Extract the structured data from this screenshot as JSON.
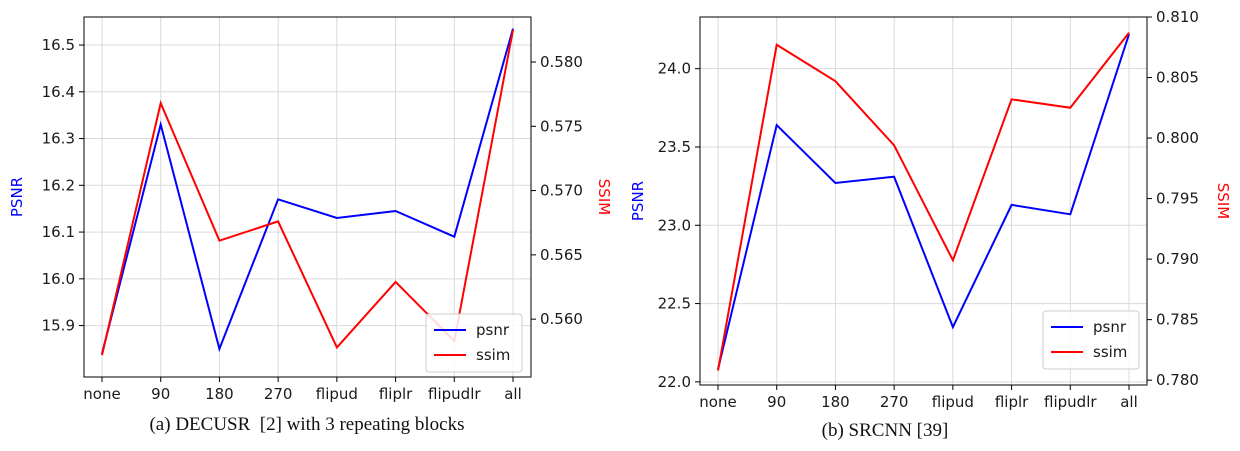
{
  "captions": {
    "left": "(a) DECUSR  [2] with 3 repeating blocks",
    "right": "(b) SRCNN [39]"
  },
  "colors": {
    "psnr": "#0000ff",
    "ssim": "#ff0000",
    "grid": "#d9d9d9",
    "axis": "#000000"
  },
  "chart_data": [
    {
      "type": "line",
      "categories": [
        "none",
        "90",
        "180",
        "270",
        "flipud",
        "fliplr",
        "flipudlr",
        "all"
      ],
      "ylabel": "PSNR",
      "y2label": "SSIM",
      "ylim": [
        15.79,
        16.56
      ],
      "y2lim": [
        0.5555,
        0.5835
      ],
      "yticks": [
        15.9,
        16.0,
        16.1,
        16.2,
        16.3,
        16.4,
        16.5
      ],
      "yticklabels": [
        "15.9",
        "16.0",
        "16.1",
        "16.2",
        "16.3",
        "16.4",
        "16.5"
      ],
      "y2ticks": [
        0.56,
        0.565,
        0.57,
        0.575,
        0.58
      ],
      "y2ticklabels": [
        "0.560",
        "0.565",
        "0.570",
        "0.575",
        "0.580"
      ],
      "grid": true,
      "legend_position": "lower-right",
      "series": [
        {
          "name": "psnr",
          "axis": "left",
          "color": "#0000ff",
          "values": [
            15.84,
            16.33,
            15.85,
            16.17,
            16.13,
            16.145,
            16.09,
            16.535
          ]
        },
        {
          "name": "ssim",
          "axis": "right",
          "color": "#ff0000",
          "values": [
            0.5572,
            0.5768,
            0.5661,
            0.5676,
            0.5578,
            0.5629,
            0.5583,
            0.5825
          ]
        }
      ]
    },
    {
      "type": "line",
      "categories": [
        "none",
        "90",
        "180",
        "270",
        "flipud",
        "fliplr",
        "flipudlr",
        "all"
      ],
      "ylabel": "PSNR",
      "y2label": "SSIM",
      "ylim": [
        21.98,
        24.33
      ],
      "y2lim": [
        0.7796,
        0.81
      ],
      "yticks": [
        22.0,
        22.5,
        23.0,
        23.5,
        24.0
      ],
      "yticklabels": [
        "22.0",
        "22.5",
        "23.0",
        "23.5",
        "24.0"
      ],
      "y2ticks": [
        0.78,
        0.785,
        0.79,
        0.795,
        0.8,
        0.805,
        0.81
      ],
      "y2ticklabels": [
        "0.780",
        "0.785",
        "0.790",
        "0.795",
        "0.800",
        "0.805",
        "0.810"
      ],
      "grid": true,
      "legend_position": "lower-right",
      "series": [
        {
          "name": "psnr",
          "axis": "left",
          "color": "#0000ff",
          "values": [
            22.08,
            23.64,
            23.27,
            23.31,
            22.35,
            23.13,
            23.07,
            24.22
          ]
        },
        {
          "name": "ssim",
          "axis": "right",
          "color": "#ff0000",
          "values": [
            0.7808,
            0.8077,
            0.8047,
            0.7994,
            0.7899,
            0.8032,
            0.8025,
            0.8087
          ]
        }
      ]
    }
  ]
}
